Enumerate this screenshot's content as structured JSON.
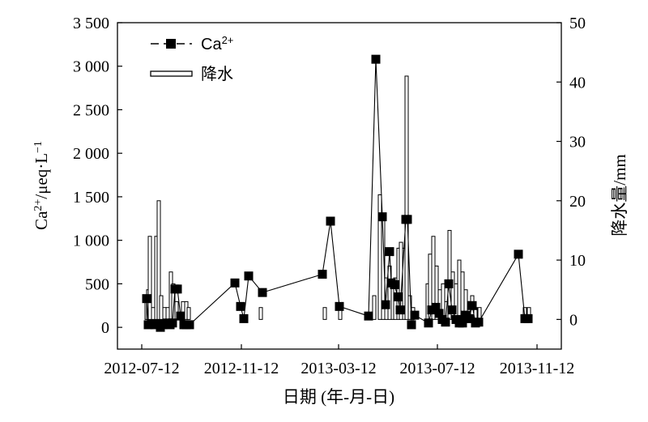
{
  "chart_data": {
    "type": "line",
    "xlabel": "日期 (年-月-日)",
    "ylabel_left": "Ca2+/μeq·L−1",
    "ylabel_right": "降水量/mm",
    "x_ticks": [
      "2012-07-12",
      "2012-11-12",
      "2013-03-12",
      "2013-07-12",
      "2013-11-12"
    ],
    "y_left_range": [
      -250,
      3500
    ],
    "y_left_ticks": [
      "0",
      "500",
      "1 000",
      "1 500",
      "2 000",
      "2 500",
      "3 000",
      "3 500"
    ],
    "y_right_range": [
      -5,
      50
    ],
    "y_right_ticks": [
      "0",
      "10",
      "20",
      "30",
      "40",
      "50"
    ],
    "legend": {
      "placement": "top-left",
      "ca_label": "Ca",
      "ca_sup": "2+",
      "rain_label": "降水"
    },
    "series": [
      {
        "name": "Ca2+",
        "kind": "line-marker",
        "points": [
          [
            "2012-07-18",
            330
          ],
          [
            "2012-07-20",
            30
          ],
          [
            "2012-07-24",
            40
          ],
          [
            "2012-07-28",
            30
          ],
          [
            "2012-08-01",
            40
          ],
          [
            "2012-08-04",
            0
          ],
          [
            "2012-08-07",
            30
          ],
          [
            "2012-08-12",
            50
          ],
          [
            "2012-08-16",
            30
          ],
          [
            "2012-08-19",
            50
          ],
          [
            "2012-08-22",
            440
          ],
          [
            "2012-08-25",
            440
          ],
          [
            "2012-08-29",
            130
          ],
          [
            "2012-09-02",
            30
          ],
          [
            "2012-09-05",
            30
          ],
          [
            "2012-09-09",
            30
          ],
          [
            "2012-11-04",
            510
          ],
          [
            "2012-11-11",
            240
          ],
          [
            "2012-11-15",
            100
          ],
          [
            "2012-11-21",
            590
          ],
          [
            "2012-12-08",
            400
          ],
          [
            "2013-02-20",
            610
          ],
          [
            "2013-03-02",
            1220
          ],
          [
            "2013-03-13",
            240
          ],
          [
            "2013-04-18",
            130
          ],
          [
            "2013-04-27",
            3080
          ],
          [
            "2013-05-05",
            1270
          ],
          [
            "2013-05-09",
            260
          ],
          [
            "2013-05-14",
            870
          ],
          [
            "2013-05-16",
            510
          ],
          [
            "2013-05-20",
            490
          ],
          [
            "2013-05-24",
            350
          ],
          [
            "2013-05-27",
            200
          ],
          [
            "2013-06-03",
            1240
          ],
          [
            "2013-06-05",
            1240
          ],
          [
            "2013-06-10",
            30
          ],
          [
            "2013-06-14",
            140
          ],
          [
            "2013-07-01",
            50
          ],
          [
            "2013-07-05",
            200
          ],
          [
            "2013-07-10",
            230
          ],
          [
            "2013-07-14",
            160
          ],
          [
            "2013-07-18",
            90
          ],
          [
            "2013-07-22",
            60
          ],
          [
            "2013-07-26",
            500
          ],
          [
            "2013-07-30",
            200
          ],
          [
            "2013-08-04",
            90
          ],
          [
            "2013-08-08",
            50
          ],
          [
            "2013-08-12",
            50
          ],
          [
            "2013-08-16",
            140
          ],
          [
            "2013-08-20",
            100
          ],
          [
            "2013-08-24",
            250
          ],
          [
            "2013-08-28",
            50
          ],
          [
            "2013-09-01",
            60
          ],
          [
            "2013-10-20",
            840
          ],
          [
            "2013-10-28",
            100
          ],
          [
            "2013-11-01",
            100
          ]
        ]
      },
      {
        "name": "降水",
        "kind": "bar",
        "axis": "right",
        "bars": [
          [
            "2012-07-18",
            3
          ],
          [
            "2012-07-20",
            5
          ],
          [
            "2012-07-22",
            14
          ],
          [
            "2012-07-26",
            2
          ],
          [
            "2012-07-30",
            14
          ],
          [
            "2012-08-02",
            20
          ],
          [
            "2012-08-05",
            4
          ],
          [
            "2012-08-09",
            2
          ],
          [
            "2012-08-13",
            2
          ],
          [
            "2012-08-17",
            8
          ],
          [
            "2012-08-20",
            6
          ],
          [
            "2012-08-24",
            3
          ],
          [
            "2012-08-28",
            1
          ],
          [
            "2012-09-01",
            3
          ],
          [
            "2012-09-05",
            3
          ],
          [
            "2012-09-08",
            2
          ],
          [
            "2012-12-06",
            2
          ],
          [
            "2013-02-23",
            2
          ],
          [
            "2013-03-14",
            2
          ],
          [
            "2013-04-25",
            4
          ],
          [
            "2013-05-02",
            21
          ],
          [
            "2013-05-06",
            17
          ],
          [
            "2013-05-10",
            7
          ],
          [
            "2013-05-14",
            9
          ],
          [
            "2013-05-18",
            6
          ],
          [
            "2013-05-21",
            7
          ],
          [
            "2013-05-25",
            12
          ],
          [
            "2013-05-28",
            13
          ],
          [
            "2013-06-01",
            12
          ],
          [
            "2013-06-04",
            41
          ],
          [
            "2013-06-08",
            4
          ],
          [
            "2013-06-12",
            2
          ],
          [
            "2013-06-30",
            6
          ],
          [
            "2013-07-03",
            11
          ],
          [
            "2013-07-07",
            14
          ],
          [
            "2013-07-11",
            9
          ],
          [
            "2013-07-15",
            5
          ],
          [
            "2013-07-19",
            6
          ],
          [
            "2013-07-23",
            3
          ],
          [
            "2013-07-27",
            15
          ],
          [
            "2013-07-31",
            8
          ],
          [
            "2013-08-04",
            6
          ],
          [
            "2013-08-08",
            10
          ],
          [
            "2013-08-12",
            8
          ],
          [
            "2013-08-16",
            5
          ],
          [
            "2013-08-20",
            3
          ],
          [
            "2013-08-24",
            4
          ],
          [
            "2013-08-28",
            2
          ],
          [
            "2013-09-02",
            2
          ],
          [
            "2013-10-28",
            2
          ],
          [
            "2013-11-02",
            2
          ]
        ]
      }
    ],
    "grid": false
  }
}
